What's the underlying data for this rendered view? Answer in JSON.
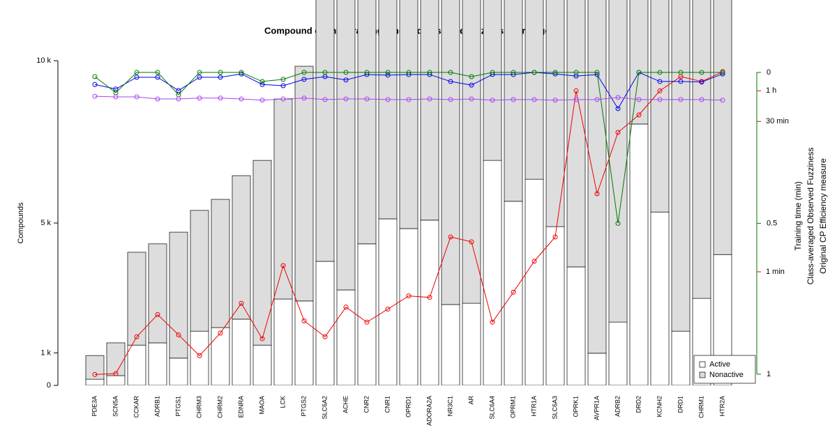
{
  "chart_data": {
    "type": "bar",
    "title": "Compound counts, training time and observed fuzziness per target",
    "ylabel": "Compounds",
    "categories": [
      "PDE3A",
      "SCN5A",
      "CCKAR",
      "ADRB1",
      "PTGS1",
      "CHRM3",
      "CHRM2",
      "EDNRA",
      "MAOA",
      "LCK",
      "PTGS2",
      "SLC6A2",
      "ACHE",
      "CNR2",
      "CNR1",
      "OPRD1",
      "ADORA2A",
      "NR3C1",
      "AR",
      "SLC6A4",
      "OPRM1",
      "HTR1A",
      "SLC6A3",
      "OPRK1",
      "AVPR1A",
      "ADRB2",
      "DRD2",
      "KCNH2",
      "DRD1",
      "CHRM1",
      "HTR2A"
    ],
    "series": [
      {
        "name": "Active",
        "color": "#ffffff",
        "values": [
          190,
          300,
          1240,
          1310,
          840,
          1670,
          1780,
          2040,
          1240,
          2660,
          2600,
          3820,
          2940,
          4360,
          5130,
          4830,
          5090,
          2490,
          2530,
          6930,
          5670,
          6350,
          4890,
          3650,
          990,
          1950,
          8050,
          5340,
          1670,
          2680,
          4030
        ]
      },
      {
        "name": "Nonactive",
        "color": "#dddddd",
        "values": [
          730,
          1010,
          2860,
          3050,
          3880,
          3720,
          3950,
          4420,
          5690,
          6160,
          7230,
          9180,
          10060,
          8640,
          7870,
          8170,
          7910,
          10510,
          10470,
          6070,
          7330,
          6650,
          8110,
          9350,
          12010,
          11050,
          4950,
          7660,
          11330,
          10320,
          8970
        ]
      },
      {
        "name": "Training time (min)",
        "color": "#ee0000",
        "axis": "y3",
        "values": [
          0.098,
          0.1,
          0.23,
          0.38,
          0.24,
          0.15,
          0.25,
          0.49,
          0.22,
          1.15,
          0.33,
          0.23,
          0.45,
          0.32,
          0.43,
          0.58,
          0.56,
          2.2,
          1.97,
          0.32,
          0.63,
          1.27,
          2.2,
          60,
          5.85,
          23.4,
          34.8,
          60,
          82.8,
          74,
          92.5
        ]
      },
      {
        "name": "Class-averaged Observed Fuzziness",
        "color": "#0000ee",
        "axis": "y2",
        "values": [
          0.04,
          0.055,
          0.016,
          0.016,
          0.06,
          0.016,
          0.016,
          0.005,
          0.04,
          0.044,
          0.023,
          0.014,
          0.025,
          0.007,
          0.009,
          0.007,
          0.007,
          0.03,
          0.042,
          0.007,
          0.007,
          0,
          0.005,
          0.012,
          0.007,
          0.12,
          0,
          0.03,
          0.03,
          0.032,
          0.005
        ]
      },
      {
        "name": "Original CP Efficiency measure",
        "color": "#007700",
        "axis": "y2",
        "values": [
          0.014,
          0.067,
          0,
          0,
          0.074,
          0,
          0,
          0,
          0.03,
          0.023,
          0,
          0,
          0,
          0,
          0,
          0,
          0,
          0,
          0.014,
          0,
          0,
          0,
          0,
          0,
          0,
          0.5,
          0,
          0,
          0,
          0,
          0
        ]
      },
      {
        "color": "#aa44ee",
        "axis": "y2",
        "values": [
          0.079,
          0.081,
          0.081,
          0.088,
          0.088,
          0.085,
          0.085,
          0.088,
          0.092,
          0.088,
          0.085,
          0.09,
          0.088,
          0.088,
          0.09,
          0.09,
          0.088,
          0.09,
          0.088,
          0.092,
          0.09,
          0.09,
          0.092,
          0.09,
          0.09,
          0.083,
          0.09,
          0.09,
          0.09,
          0.09,
          0.092
        ]
      }
    ],
    "ylim": [
      0,
      11870
    ],
    "yticks": [
      0,
      {
        "value": 1000,
        "label": "1 k"
      },
      {
        "value": 5000,
        "label": "5 k"
      },
      {
        "value": 10000,
        "label": "10 k"
      }
    ],
    "y2lim": [
      1.037,
      -0.24
    ],
    "y2ticks": [
      0,
      0.5,
      1
    ],
    "y3lim": [
      0.0766,
      468
    ],
    "y3log": true,
    "y3ticks": [
      {
        "value": 60,
        "label": "1 h"
      },
      {
        "value": 30,
        "label": "30 min"
      },
      {
        "value": 1,
        "label": "1 min"
      }
    ],
    "legend": "lower right"
  }
}
